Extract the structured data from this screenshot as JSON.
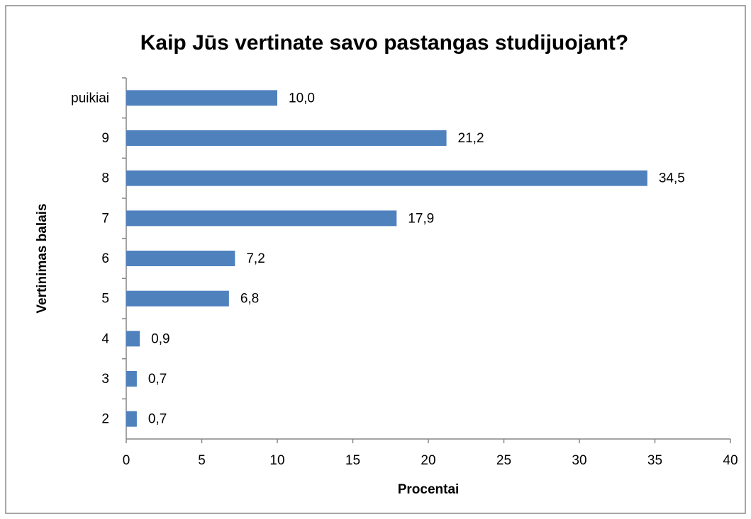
{
  "chart_data": {
    "type": "bar",
    "orientation": "horizontal",
    "title": "Kaip Jūs vertinate savo pastangas studijuojant?",
    "x_label": "Procentai",
    "y_label": "Vertinimas balais",
    "categories": [
      "puikiai",
      "9",
      "8",
      "7",
      "6",
      "5",
      "4",
      "3",
      "2"
    ],
    "values": [
      10.0,
      21.2,
      34.5,
      17.9,
      7.2,
      6.8,
      0.9,
      0.7,
      0.7
    ],
    "value_labels": [
      "10,0",
      "21,2",
      "34,5",
      "17,9",
      "7,2",
      "6,8",
      "0,9",
      "0,7",
      "0,7"
    ],
    "color": "#4f81bd",
    "xlim": [
      0,
      40
    ],
    "xticks": [
      0,
      5,
      10,
      15,
      20,
      25,
      30,
      35,
      40
    ],
    "grid": false
  }
}
